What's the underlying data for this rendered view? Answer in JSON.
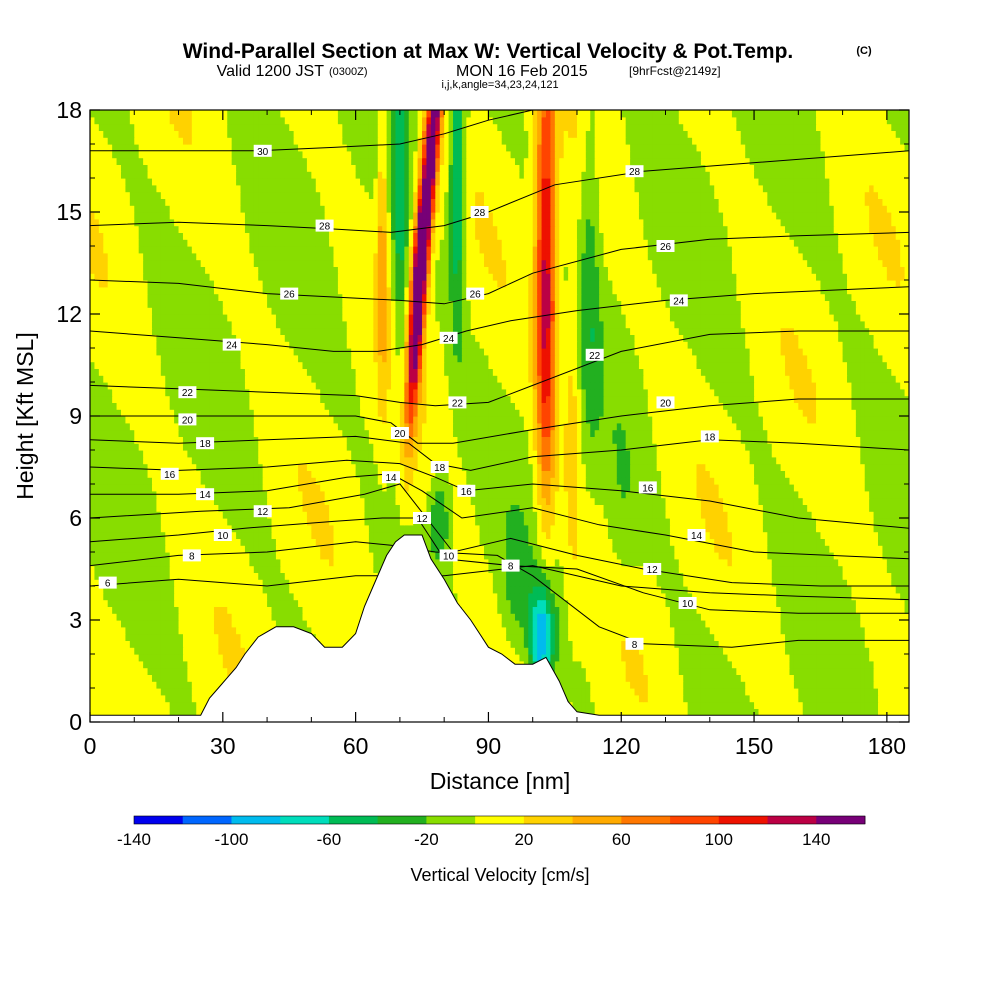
{
  "header": {
    "title": "Wind-Parallel Section at Max W: Vertical Velocity & Pot.Temp.",
    "copyright": "(C)",
    "valid_pre": "Valid 1200 JST",
    "valid_utc": "(0300Z)",
    "valid_date": "MON 16 Feb 2015",
    "forecast": "[9hrFcst@2149z]",
    "indices": "i,j,k,angle=34,23,24,121"
  },
  "chart_data": {
    "type": "heatmap",
    "xlabel": "Distance [nm]",
    "ylabel": "Height [Kft MSL]",
    "xlim": [
      0,
      185
    ],
    "ylim": [
      0,
      18
    ],
    "x_ticks": [
      0,
      30,
      60,
      90,
      120,
      150,
      180
    ],
    "y_ticks": [
      0,
      3,
      6,
      9,
      12,
      15,
      18
    ],
    "colorbar": {
      "label": "Vertical Velocity [cm/s]",
      "levels": [
        -140,
        -120,
        -100,
        -80,
        -60,
        -40,
        -20,
        0,
        20,
        40,
        60,
        80,
        100,
        120,
        140,
        160
      ],
      "tick_labels": [
        -140,
        -100,
        -60,
        -20,
        20,
        60,
        100,
        140
      ],
      "colors": [
        "#0000ee",
        "#0066ff",
        "#00bbee",
        "#00ddbb",
        "#00bb55",
        "#22b020",
        "#88dd00",
        "#ffff00",
        "#ffd200",
        "#ffaa00",
        "#ff7700",
        "#ff4400",
        "#ee1100",
        "#bb0044",
        "#770077"
      ]
    },
    "terrain_kft": [
      [
        0,
        0.2
      ],
      [
        25,
        0.2
      ],
      [
        27,
        0.7
      ],
      [
        29,
        1.0
      ],
      [
        31,
        1.3
      ],
      [
        33,
        1.6
      ],
      [
        35,
        2.0
      ],
      [
        38,
        2.5
      ],
      [
        42,
        2.8
      ],
      [
        46,
        2.8
      ],
      [
        50,
        2.6
      ],
      [
        53,
        2.2
      ],
      [
        57,
        2.2
      ],
      [
        60,
        2.6
      ],
      [
        62,
        3.4
      ],
      [
        64,
        4.0
      ],
      [
        67,
        4.9
      ],
      [
        69,
        5.3
      ],
      [
        71,
        5.5
      ],
      [
        75,
        5.5
      ],
      [
        77,
        4.8
      ],
      [
        80,
        4.2
      ],
      [
        83,
        3.5
      ],
      [
        86,
        3.0
      ],
      [
        88,
        2.6
      ],
      [
        90,
        2.2
      ],
      [
        93,
        2.0
      ],
      [
        96,
        1.7
      ],
      [
        100,
        1.7
      ],
      [
        103,
        1.9
      ],
      [
        106,
        1.2
      ],
      [
        108,
        0.6
      ],
      [
        110,
        0.3
      ],
      [
        115,
        0.2
      ],
      [
        120,
        0.2
      ],
      [
        185,
        0.2
      ]
    ],
    "w_features": [
      {
        "x": 77,
        "y": 16.5,
        "sx": 1.6,
        "sy": 6.0,
        "slope": 0.6,
        "w": 165
      },
      {
        "x": 74,
        "y": 13.0,
        "sx": 1.5,
        "sy": 3.5,
        "slope": 0.4,
        "w": 120
      },
      {
        "x": 103,
        "y": 13.0,
        "sx": 2.3,
        "sy": 6.5,
        "slope": 0.0,
        "w": 130
      },
      {
        "x": 66,
        "y": 14.0,
        "sx": 1.2,
        "sy": 4.5,
        "slope": 0.0,
        "w": 45
      },
      {
        "x": 109,
        "y": 9.0,
        "sx": 1.8,
        "sy": 5.0,
        "slope": 0.0,
        "w": 30
      },
      {
        "x": 83,
        "y": 16.0,
        "sx": 1.8,
        "sy": 4.5,
        "slope": 0.0,
        "w": -70
      },
      {
        "x": 70,
        "y": 15.0,
        "sx": 1.6,
        "sy": 5.0,
        "slope": 0.0,
        "w": -50
      },
      {
        "x": 79,
        "y": 6.0,
        "sx": 2.5,
        "sy": 1.4,
        "slope": 0.0,
        "w": -45
      },
      {
        "x": 102,
        "y": 2.5,
        "sx": 2.8,
        "sy": 1.6,
        "slope": 0.0,
        "w": -100
      },
      {
        "x": 96,
        "y": 4.0,
        "sx": 3.0,
        "sy": 1.6,
        "slope": 0.0,
        "w": -25
      },
      {
        "x": 113,
        "y": 14.0,
        "sx": 2.2,
        "sy": 6.0,
        "slope": 0.0,
        "w": -30
      },
      {
        "x": 120,
        "y": 6.0,
        "sx": 4.0,
        "sy": 2.5,
        "slope": 0.0,
        "w": -15
      }
    ],
    "theta_contours": [
      {
        "label": "6",
        "pts": [
          [
            0,
            4.0
          ],
          [
            20,
            4.2
          ],
          [
            40,
            4.0
          ],
          [
            60,
            4.3
          ],
          [
            80,
            4.3
          ],
          [
            100,
            4.6
          ],
          [
            120,
            4.0
          ],
          [
            140,
            3.8
          ],
          [
            160,
            3.7
          ],
          [
            185,
            3.6
          ]
        ],
        "labels_at": [
          [
            4,
            4.1
          ]
        ]
      },
      {
        "label": "8",
        "pts": [
          [
            0,
            4.6
          ],
          [
            20,
            4.9
          ],
          [
            40,
            5.0
          ],
          [
            60,
            5.3
          ],
          [
            68,
            5.2
          ],
          [
            78,
            5.0
          ],
          [
            92,
            4.9
          ],
          [
            100,
            4.3
          ],
          [
            115,
            2.8
          ],
          [
            125,
            2.3
          ],
          [
            145,
            2.2
          ],
          [
            160,
            2.4
          ],
          [
            185,
            2.4
          ]
        ],
        "labels_at": [
          [
            23,
            4.9
          ],
          [
            95,
            4.6
          ],
          [
            123,
            2.3
          ]
        ]
      },
      {
        "label": "10",
        "pts": [
          [
            0,
            5.3
          ],
          [
            20,
            5.5
          ],
          [
            35,
            5.7
          ],
          [
            55,
            5.9
          ],
          [
            66,
            6.0
          ],
          [
            74,
            6.0
          ],
          [
            80,
            4.8
          ],
          [
            95,
            4.6
          ],
          [
            110,
            4.5
          ],
          [
            125,
            3.8
          ],
          [
            140,
            3.3
          ],
          [
            160,
            3.2
          ],
          [
            185,
            3.2
          ]
        ],
        "labels_at": [
          [
            30,
            5.5
          ],
          [
            81,
            4.9
          ],
          [
            135,
            3.5
          ]
        ]
      },
      {
        "label": "12",
        "pts": [
          [
            0,
            6.0
          ],
          [
            25,
            6.2
          ],
          [
            45,
            6.3
          ],
          [
            62,
            6.7
          ],
          [
            70,
            7.0
          ],
          [
            76,
            6.0
          ],
          [
            82,
            5.0
          ],
          [
            95,
            5.4
          ],
          [
            110,
            4.9
          ],
          [
            125,
            4.5
          ],
          [
            145,
            4.1
          ],
          [
            165,
            4.0
          ],
          [
            185,
            4.0
          ]
        ],
        "labels_at": [
          [
            39,
            6.2
          ],
          [
            75,
            6.0
          ],
          [
            127,
            4.5
          ]
        ]
      },
      {
        "label": "14",
        "pts": [
          [
            0,
            6.7
          ],
          [
            20,
            6.7
          ],
          [
            40,
            6.8
          ],
          [
            58,
            7.2
          ],
          [
            68,
            7.3
          ],
          [
            75,
            6.8
          ],
          [
            84,
            6.0
          ],
          [
            100,
            6.3
          ],
          [
            115,
            5.8
          ],
          [
            130,
            5.5
          ],
          [
            150,
            5.0
          ],
          [
            185,
            4.8
          ]
        ],
        "labels_at": [
          [
            26,
            6.7
          ],
          [
            68,
            7.2
          ],
          [
            137,
            5.5
          ]
        ]
      },
      {
        "label": "16",
        "pts": [
          [
            0,
            7.5
          ],
          [
            20,
            7.4
          ],
          [
            40,
            7.5
          ],
          [
            58,
            7.7
          ],
          [
            70,
            7.6
          ],
          [
            78,
            7.2
          ],
          [
            85,
            6.8
          ],
          [
            100,
            7.0
          ],
          [
            120,
            6.8
          ],
          [
            140,
            6.5
          ],
          [
            160,
            6.0
          ],
          [
            185,
            5.7
          ]
        ],
        "labels_at": [
          [
            18,
            7.3
          ],
          [
            85,
            6.8
          ],
          [
            126,
            6.9
          ]
        ]
      },
      {
        "label": "18",
        "pts": [
          [
            0,
            8.3
          ],
          [
            20,
            8.2
          ],
          [
            40,
            8.3
          ],
          [
            60,
            8.4
          ],
          [
            72,
            8.2
          ],
          [
            78,
            7.6
          ],
          [
            86,
            7.4
          ],
          [
            100,
            7.8
          ],
          [
            120,
            8.0
          ],
          [
            140,
            8.3
          ],
          [
            160,
            8.2
          ],
          [
            185,
            8.0
          ]
        ],
        "labels_at": [
          [
            26,
            8.2
          ],
          [
            79,
            7.5
          ],
          [
            140,
            8.4
          ]
        ]
      },
      {
        "label": "20",
        "pts": [
          [
            0,
            9.0
          ],
          [
            20,
            9.0
          ],
          [
            40,
            9.0
          ],
          [
            60,
            9.0
          ],
          [
            68,
            8.8
          ],
          [
            74,
            8.2
          ],
          [
            82,
            8.2
          ],
          [
            100,
            8.6
          ],
          [
            120,
            9.0
          ],
          [
            140,
            9.3
          ],
          [
            160,
            9.5
          ],
          [
            185,
            9.5
          ]
        ],
        "labels_at": [
          [
            22,
            8.9
          ],
          [
            70,
            8.5
          ],
          [
            130,
            9.4
          ]
        ]
      },
      {
        "label": "22",
        "pts": [
          [
            0,
            9.9
          ],
          [
            20,
            9.8
          ],
          [
            40,
            9.7
          ],
          [
            60,
            9.6
          ],
          [
            70,
            9.4
          ],
          [
            78,
            9.3
          ],
          [
            90,
            9.4
          ],
          [
            100,
            9.9
          ],
          [
            120,
            10.9
          ],
          [
            140,
            11.4
          ],
          [
            160,
            11.5
          ],
          [
            185,
            11.5
          ]
        ],
        "labels_at": [
          [
            22,
            9.7
          ],
          [
            83,
            9.4
          ],
          [
            114,
            10.8
          ]
        ]
      },
      {
        "label": "24",
        "pts": [
          [
            0,
            11.5
          ],
          [
            20,
            11.3
          ],
          [
            40,
            11.1
          ],
          [
            55,
            10.9
          ],
          [
            65,
            10.9
          ],
          [
            75,
            11.1
          ],
          [
            85,
            11.5
          ],
          [
            95,
            11.8
          ],
          [
            110,
            12.1
          ],
          [
            130,
            12.4
          ],
          [
            150,
            12.6
          ],
          [
            185,
            12.8
          ]
        ],
        "labels_at": [
          [
            32,
            11.1
          ],
          [
            81,
            11.3
          ],
          [
            133,
            12.4
          ]
        ]
      },
      {
        "label": "26",
        "pts": [
          [
            0,
            13.0
          ],
          [
            20,
            12.9
          ],
          [
            40,
            12.6
          ],
          [
            55,
            12.5
          ],
          [
            70,
            12.4
          ],
          [
            80,
            12.3
          ],
          [
            90,
            12.6
          ],
          [
            100,
            13.2
          ],
          [
            120,
            13.9
          ],
          [
            140,
            14.2
          ],
          [
            160,
            14.3
          ],
          [
            185,
            14.4
          ]
        ],
        "labels_at": [
          [
            45,
            12.6
          ],
          [
            87,
            12.6
          ],
          [
            130,
            14.0
          ]
        ]
      },
      {
        "label": "28",
        "pts": [
          [
            0,
            14.6
          ],
          [
            20,
            14.7
          ],
          [
            40,
            14.6
          ],
          [
            55,
            14.5
          ],
          [
            68,
            14.4
          ],
          [
            80,
            14.6
          ],
          [
            90,
            15.0
          ],
          [
            105,
            15.8
          ],
          [
            125,
            16.2
          ],
          [
            145,
            16.4
          ],
          [
            165,
            16.6
          ],
          [
            185,
            16.8
          ]
        ],
        "labels_at": [
          [
            53,
            14.6
          ],
          [
            88,
            15.0
          ],
          [
            123,
            16.2
          ]
        ]
      },
      {
        "label": "30",
        "pts": [
          [
            0,
            16.8
          ],
          [
            20,
            16.8
          ],
          [
            38,
            16.8
          ],
          [
            55,
            16.9
          ],
          [
            70,
            17.0
          ],
          [
            80,
            17.3
          ],
          [
            90,
            17.7
          ],
          [
            100,
            18.0
          ]
        ],
        "labels_at": [
          [
            39,
            16.8
          ]
        ]
      }
    ]
  }
}
